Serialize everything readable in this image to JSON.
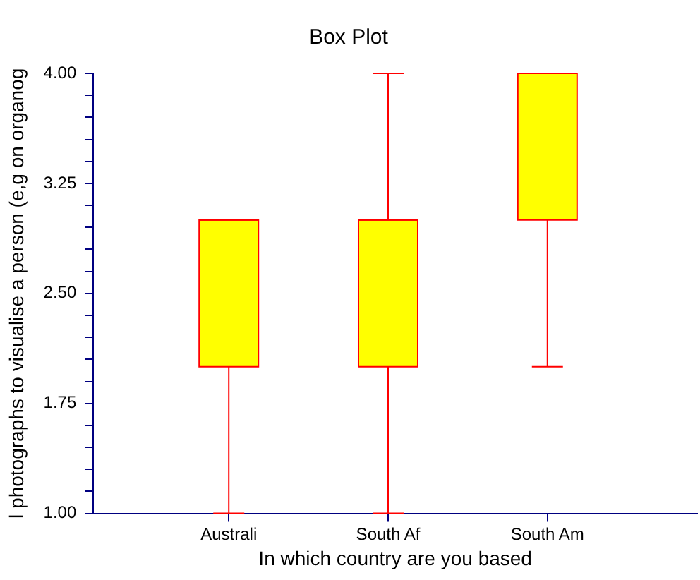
{
  "chart_data": {
    "type": "box",
    "title": "Box Plot",
    "xlabel": "In which country are you based",
    "ylabel": "l photographs to visualise a person (e,g on organog",
    "categories": [
      "Australi",
      "South Af",
      "South Am"
    ],
    "boxes": [
      {
        "low": 1.0,
        "q1": 2.0,
        "median": 3.0,
        "q3": 3.0,
        "high": 3.0
      },
      {
        "low": 1.0,
        "q1": 2.0,
        "median": 3.0,
        "q3": 3.0,
        "high": 4.0
      },
      {
        "low": 2.0,
        "q1": 3.0,
        "median": 4.0,
        "q3": 4.0,
        "high": 4.0
      }
    ],
    "color": "#ffff00",
    "ylim": [
      1.0,
      4.0
    ],
    "yticks": [
      {
        "value": 1.0,
        "label": "1.00"
      },
      {
        "value": 1.15,
        "label": null
      },
      {
        "value": 1.3,
        "label": null
      },
      {
        "value": 1.45,
        "label": null
      },
      {
        "value": 1.6,
        "label": null
      },
      {
        "value": 1.75,
        "label": "1.75"
      },
      {
        "value": 1.9,
        "label": null
      },
      {
        "value": 2.05,
        "label": null
      },
      {
        "value": 2.2,
        "label": null
      },
      {
        "value": 2.35,
        "label": null
      },
      {
        "value": 2.5,
        "label": "2.50"
      },
      {
        "value": 2.65,
        "label": null
      },
      {
        "value": 2.8,
        "label": null
      },
      {
        "value": 2.95,
        "label": null
      },
      {
        "value": 3.1,
        "label": null
      },
      {
        "value": 3.25,
        "label": "3.25"
      },
      {
        "value": 3.4,
        "label": null
      },
      {
        "value": 3.55,
        "label": null
      },
      {
        "value": 3.7,
        "label": null
      },
      {
        "value": 3.85,
        "label": null
      },
      {
        "value": 4.0,
        "label": "4.00"
      }
    ]
  }
}
